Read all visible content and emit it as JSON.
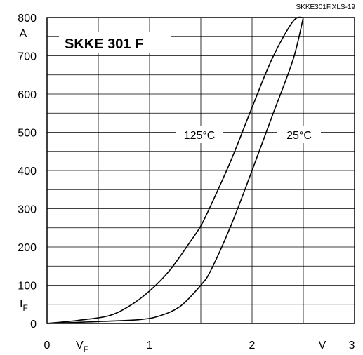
{
  "chart_data": {
    "type": "line",
    "title": "SKKE 301 F",
    "file_label": "SKKE301F.XLS-19",
    "x_axis": {
      "lim": [
        0,
        3
      ],
      "ticks": [
        0,
        1,
        2,
        3
      ],
      "tick_labels": [
        "0",
        "1",
        "2",
        "3"
      ],
      "symbol_main": "V",
      "symbol_sub": "F",
      "unit": "V"
    },
    "y_axis": {
      "lim": [
        0,
        800
      ],
      "ticks": [
        0,
        100,
        200,
        300,
        400,
        500,
        600,
        700,
        800
      ],
      "tick_labels": [
        "0",
        "100",
        "200",
        "300",
        "400",
        "500",
        "600",
        "700",
        "800"
      ],
      "symbol_main": "I",
      "symbol_sub": "F",
      "unit": "A"
    },
    "grid": true,
    "series": [
      {
        "name": "125°C",
        "x": [
          0,
          0.3,
          0.6,
          0.8,
          1.0,
          1.2,
          1.4,
          1.5,
          1.6,
          1.8,
          2.0,
          2.2,
          2.4,
          2.5
        ],
        "y": [
          0,
          8,
          20,
          45,
          85,
          140,
          215,
          255,
          310,
          430,
          565,
          695,
          790,
          800
        ]
      },
      {
        "name": "25°C",
        "x": [
          0,
          0.5,
          0.9,
          1.1,
          1.3,
          1.5,
          1.6,
          1.8,
          2.0,
          2.2,
          2.4,
          2.5
        ],
        "y": [
          0,
          5,
          10,
          20,
          45,
          100,
          140,
          260,
          400,
          545,
          690,
          800
        ]
      }
    ]
  }
}
